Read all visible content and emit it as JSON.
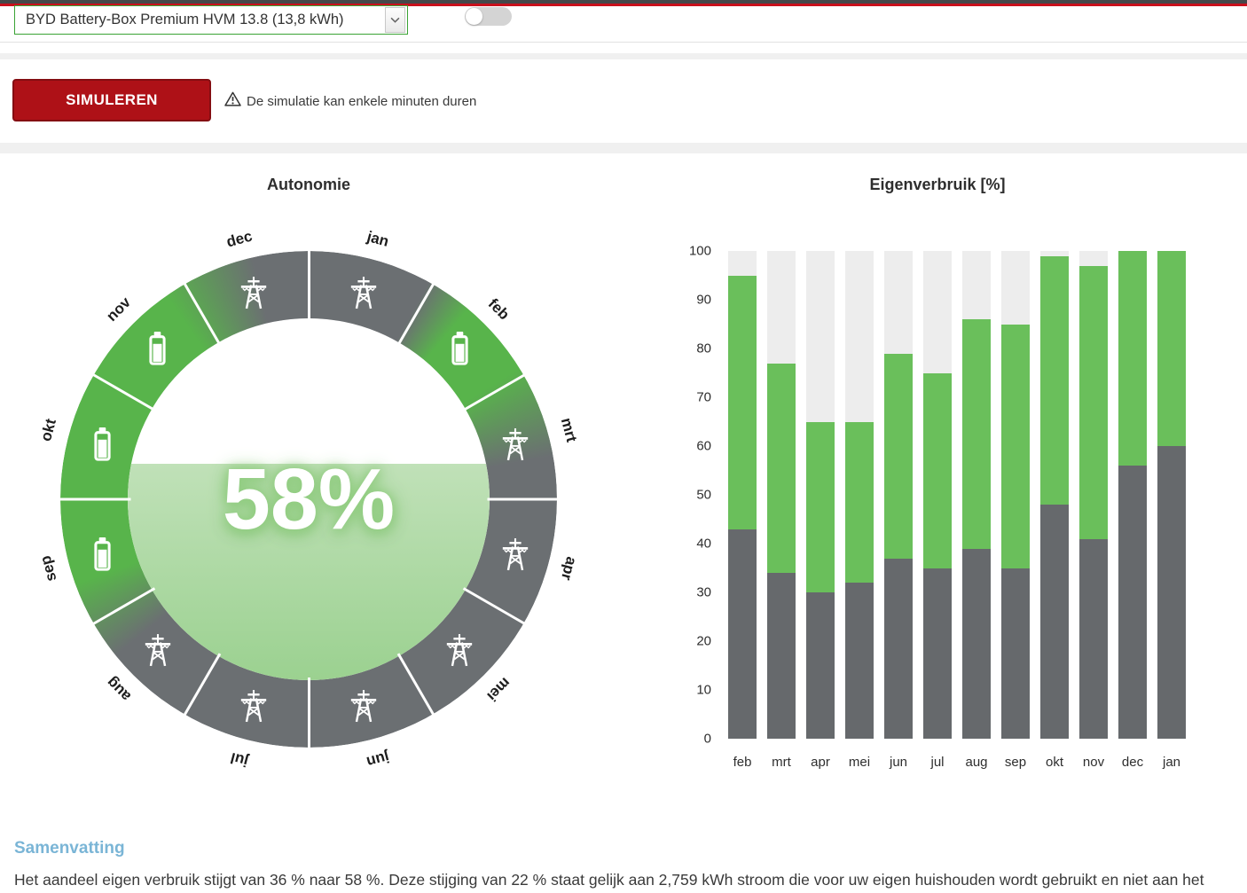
{
  "header": {
    "battery_select": {
      "value": "BYD Battery-Box Premium HVM 13.8 (13,8 kWh)"
    },
    "toggle": {
      "state": "off"
    }
  },
  "actions": {
    "simulate_label": "SIMULEREN",
    "warning_text": "De simulatie kan enkele minuten duren"
  },
  "colors": {
    "accent_red": "#ae1117",
    "ring_green": "#58b44b",
    "ring_gray": "#6b6f72",
    "bar_green": "#6abf5b",
    "bar_gray": "#66696c",
    "bar_track": "#ededed",
    "fill_top": "#c0e1b8",
    "fill_bottom": "#9bd190",
    "heading_blue": "#7ab5d6",
    "select_border_green": "#3aa335"
  },
  "chart_data": [
    {
      "type": "gauge-ring",
      "title": "Autonomie",
      "center_value": "58%",
      "center_fill_percent": 58,
      "months": [
        {
          "label": "jan",
          "icon": "pylon-icon",
          "state": "grid"
        },
        {
          "label": "feb",
          "icon": "battery-icon",
          "state": "battery"
        },
        {
          "label": "mrt",
          "icon": "pylon-icon",
          "state": "grid"
        },
        {
          "label": "apr",
          "icon": "pylon-icon",
          "state": "grid"
        },
        {
          "label": "mei",
          "icon": "pylon-icon",
          "state": "grid"
        },
        {
          "label": "jun",
          "icon": "pylon-icon",
          "state": "grid"
        },
        {
          "label": "jul",
          "icon": "pylon-icon",
          "state": "grid"
        },
        {
          "label": "aug",
          "icon": "pylon-icon",
          "state": "grid"
        },
        {
          "label": "sep",
          "icon": "battery-icon",
          "state": "battery"
        },
        {
          "label": "okt",
          "icon": "battery-icon",
          "state": "battery"
        },
        {
          "label": "nov",
          "icon": "battery-icon",
          "state": "battery"
        },
        {
          "label": "dec",
          "icon": "pylon-icon",
          "state": "grid"
        }
      ]
    },
    {
      "type": "bar",
      "title": "Eigenverbruik [%]",
      "categories": [
        "feb",
        "mrt",
        "apr",
        "mei",
        "jun",
        "jul",
        "aug",
        "sep",
        "okt",
        "nov",
        "dec",
        "jan"
      ],
      "series": [
        {
          "name": "gray",
          "values": [
            43,
            34,
            30,
            32,
            37,
            35,
            39,
            35,
            48,
            41,
            56,
            60
          ]
        },
        {
          "name": "green",
          "values": [
            95,
            77,
            65,
            65,
            79,
            75,
            86,
            85,
            99,
            97,
            100,
            100
          ]
        }
      ],
      "ylim": [
        0,
        100
      ],
      "yticks": [
        0,
        10,
        20,
        30,
        40,
        50,
        60,
        70,
        80,
        90,
        100
      ],
      "grid": false,
      "legend": false
    }
  ],
  "summary": {
    "heading": "Samenvatting",
    "body": "Het aandeel eigen verbruik stijgt van 36 % naar 58 %. Deze stijging van 22 % staat gelijk aan 2,759 kWh stroom die voor uw eigen huishouden wordt gebruikt en niet aan het"
  }
}
